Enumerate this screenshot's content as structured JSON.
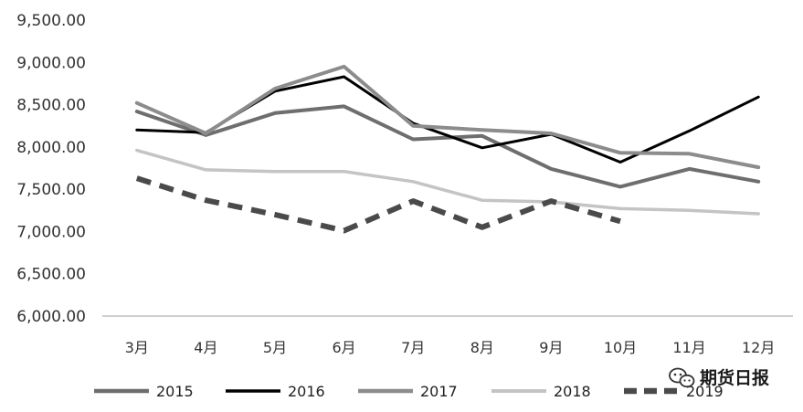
{
  "chart_data": {
    "type": "line",
    "categories": [
      "3月",
      "4月",
      "5月",
      "6月",
      "7月",
      "8月",
      "9月",
      "10月",
      "11月",
      "12月"
    ],
    "ylim": [
      6000,
      9500
    ],
    "y_ticks": [
      "6,000.00",
      "6,500.00",
      "7,000.00",
      "7,500.00",
      "8,000.00",
      "8,500.00",
      "9,000.00",
      "9,500.00"
    ],
    "y_tick_values": [
      6000,
      6500,
      7000,
      7500,
      8000,
      8500,
      9000,
      9500
    ],
    "grid": false,
    "legend_position": "bottom",
    "series": [
      {
        "name": "2015",
        "color": "#6e6e6e",
        "dash": "solid",
        "width": 4,
        "values": [
          8420,
          8140,
          8400,
          8480,
          8090,
          8130,
          7740,
          7530,
          7740,
          7590
        ]
      },
      {
        "name": "2016",
        "color": "#000000",
        "dash": "solid",
        "width": 3,
        "values": [
          8200,
          8170,
          8660,
          8830,
          8280,
          7990,
          8150,
          7820,
          8190,
          8590
        ]
      },
      {
        "name": "2017",
        "color": "#8c8c8c",
        "dash": "solid",
        "width": 4,
        "values": [
          8520,
          8160,
          8690,
          8950,
          8250,
          8200,
          8160,
          7930,
          7920,
          7760
        ]
      },
      {
        "name": "2018",
        "color": "#c4c4c4",
        "dash": "solid",
        "width": 3.5,
        "values": [
          7960,
          7730,
          7710,
          7710,
          7590,
          7370,
          7350,
          7270,
          7250,
          7210
        ]
      },
      {
        "name": "2019",
        "color": "#4a4a4a",
        "dash": "dashed",
        "width": 6,
        "values": [
          7630,
          7370,
          7200,
          7010,
          7360,
          7050,
          7360,
          7120,
          null,
          null
        ]
      }
    ]
  },
  "watermark": {
    "text": "期货日报",
    "icon": "wechat-icon"
  }
}
